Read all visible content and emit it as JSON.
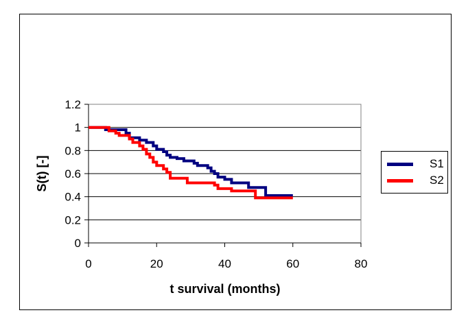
{
  "chart_data": {
    "type": "line",
    "xlabel": "t survival (months)",
    "ylabel": "S(t) [-]",
    "xlim": [
      0,
      80
    ],
    "ylim": [
      0,
      1.2
    ],
    "x_ticks": [
      "0",
      "20",
      "40",
      "60",
      "80"
    ],
    "y_ticks": [
      "0",
      "0.2",
      "0.4",
      "0.6",
      "0.8",
      "1",
      "1.2"
    ],
    "grid": "horizontal",
    "legend_position": "right",
    "step": true,
    "series": [
      {
        "name": "S1",
        "color": "#000080",
        "points": [
          [
            0,
            1.0
          ],
          [
            5,
            1.0
          ],
          [
            5,
            0.98
          ],
          [
            11,
            0.98
          ],
          [
            11,
            0.95
          ],
          [
            12,
            0.95
          ],
          [
            12,
            0.91
          ],
          [
            15,
            0.91
          ],
          [
            15,
            0.89
          ],
          [
            17,
            0.89
          ],
          [
            17,
            0.87
          ],
          [
            19,
            0.87
          ],
          [
            19,
            0.84
          ],
          [
            20,
            0.84
          ],
          [
            20,
            0.81
          ],
          [
            22,
            0.81
          ],
          [
            22,
            0.79
          ],
          [
            23,
            0.79
          ],
          [
            23,
            0.76
          ],
          [
            24,
            0.76
          ],
          [
            24,
            0.74
          ],
          [
            26,
            0.74
          ],
          [
            26,
            0.73
          ],
          [
            28,
            0.73
          ],
          [
            28,
            0.71
          ],
          [
            31,
            0.71
          ],
          [
            31,
            0.69
          ],
          [
            32,
            0.69
          ],
          [
            32,
            0.67
          ],
          [
            35,
            0.67
          ],
          [
            35,
            0.65
          ],
          [
            36,
            0.65
          ],
          [
            36,
            0.62
          ],
          [
            37,
            0.62
          ],
          [
            37,
            0.6
          ],
          [
            38,
            0.6
          ],
          [
            38,
            0.57
          ],
          [
            40,
            0.57
          ],
          [
            40,
            0.55
          ],
          [
            42,
            0.55
          ],
          [
            42,
            0.52
          ],
          [
            47,
            0.52
          ],
          [
            47,
            0.48
          ],
          [
            52,
            0.48
          ],
          [
            52,
            0.41
          ],
          [
            60,
            0.41
          ]
        ]
      },
      {
        "name": "S2",
        "color": "#ff0000",
        "points": [
          [
            0,
            1.0
          ],
          [
            6,
            1.0
          ],
          [
            6,
            0.97
          ],
          [
            8,
            0.97
          ],
          [
            8,
            0.95
          ],
          [
            9,
            0.95
          ],
          [
            9,
            0.93
          ],
          [
            12,
            0.93
          ],
          [
            12,
            0.9
          ],
          [
            13,
            0.9
          ],
          [
            13,
            0.87
          ],
          [
            15,
            0.87
          ],
          [
            15,
            0.84
          ],
          [
            16,
            0.84
          ],
          [
            16,
            0.81
          ],
          [
            17,
            0.81
          ],
          [
            17,
            0.77
          ],
          [
            18,
            0.77
          ],
          [
            18,
            0.74
          ],
          [
            19,
            0.74
          ],
          [
            19,
            0.7
          ],
          [
            20,
            0.7
          ],
          [
            20,
            0.67
          ],
          [
            22,
            0.67
          ],
          [
            22,
            0.64
          ],
          [
            23,
            0.64
          ],
          [
            23,
            0.61
          ],
          [
            24,
            0.61
          ],
          [
            24,
            0.56
          ],
          [
            29,
            0.56
          ],
          [
            29,
            0.52
          ],
          [
            37,
            0.52
          ],
          [
            37,
            0.5
          ],
          [
            38,
            0.5
          ],
          [
            38,
            0.47
          ],
          [
            42,
            0.47
          ],
          [
            42,
            0.45
          ],
          [
            49,
            0.45
          ],
          [
            49,
            0.39
          ],
          [
            60,
            0.39
          ]
        ]
      }
    ]
  }
}
